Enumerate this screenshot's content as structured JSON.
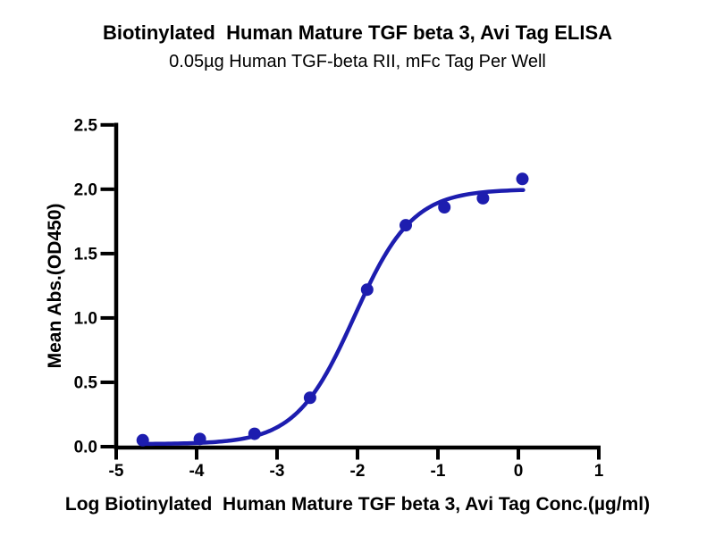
{
  "chart_data": {
    "type": "scatter",
    "title": "Biotinylated  Human Mature TGF beta 3, Avi Tag ELISA",
    "subtitle": "0.05µg Human TGF-beta RII, mFc Tag Per Well",
    "xlabel": "Log Biotinylated  Human Mature TGF beta 3, Avi Tag Conc.(µg/ml)",
    "ylabel": "Mean Abs.(OD450)",
    "xlim": [
      -5,
      1
    ],
    "ylim": [
      0,
      2.5
    ],
    "x_ticks": [
      -5,
      -4,
      -3,
      -2,
      -1,
      0,
      1
    ],
    "y_ticks": [
      0,
      0.5,
      1,
      1.5,
      2,
      2.5
    ],
    "grid": false,
    "legend_position": "none",
    "colors": {
      "series": "#1d1daf",
      "axis": "#000000",
      "text": "#000000",
      "background": "#ffffff"
    },
    "series": [
      {
        "marker": "circle",
        "color": "#1d1daf",
        "points": [
          {
            "x": -4.67,
            "y": 0.05
          },
          {
            "x": -3.96,
            "y": 0.06
          },
          {
            "x": -3.28,
            "y": 0.1
          },
          {
            "x": -2.59,
            "y": 0.38
          },
          {
            "x": -1.88,
            "y": 1.22
          },
          {
            "x": -1.4,
            "y": 1.72
          },
          {
            "x": -0.92,
            "y": 1.86
          },
          {
            "x": -0.44,
            "y": 1.93
          },
          {
            "x": 0.05,
            "y": 2.08
          }
        ]
      }
    ],
    "fit_curve": {
      "model": "four_parameter_logistic",
      "bottom": 0.02,
      "top": 2.0,
      "log_ec50": -2.04,
      "hill_slope": 1.2,
      "x_start": -4.67,
      "x_end": 0.06,
      "color": "#1d1daf"
    }
  }
}
